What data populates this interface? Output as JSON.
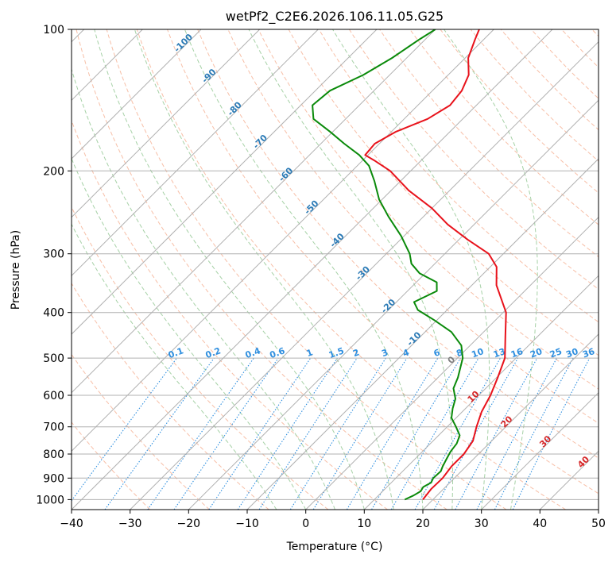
{
  "chart_data": {
    "type": "line",
    "title": "wetPf2_C2E6.2026.106.11.05.G25",
    "xlabel": "Temperature (°C)",
    "ylabel": "Pressure (hPa)",
    "xlim": [
      -40,
      50
    ],
    "ylim": [
      1050,
      100
    ],
    "x_ticks": [
      -40,
      -30,
      -20,
      -10,
      0,
      10,
      20,
      30,
      40,
      50
    ],
    "x_tick_labels": [
      "−40",
      "−30",
      "−20",
      "−10",
      "0",
      "10",
      "20",
      "30",
      "40",
      "50"
    ],
    "y_ticks": [
      1000,
      900,
      800,
      700,
      600,
      500,
      400,
      300,
      200,
      100
    ],
    "y_tick_labels": [
      "1000",
      "900",
      "800",
      "700",
      "600",
      "500",
      "400",
      "300",
      "200",
      "100"
    ],
    "colors": {
      "temperature": "#e8121b",
      "dewpoint": "#0a8a0a",
      "isotherm": "#8f8f8f",
      "dry_adiabat": "#f4a98a",
      "moist_adiabat": "#9ccc9c",
      "mixing_ratio": "#2f8fdf",
      "isotherm_label": "#2c7bb6",
      "mixing_label": "#2f8fdf",
      "warm_label": "#d62728",
      "zero_label": "#7f7f7f",
      "grid": "#b0b0b0"
    },
    "series": [
      {
        "name": "Temperature",
        "points": [
          [
            18.3,
            1000
          ],
          [
            17.9,
            950
          ],
          [
            18.0,
            900
          ],
          [
            17.5,
            850
          ],
          [
            17.5,
            800
          ],
          [
            16.8,
            750
          ],
          [
            15.0,
            700
          ],
          [
            13.3,
            650
          ],
          [
            12.0,
            600
          ],
          [
            10.2,
            550
          ],
          [
            8.1,
            500
          ],
          [
            4.5,
            450
          ],
          [
            0.5,
            400
          ],
          [
            -5.8,
            350
          ],
          [
            -8.9,
            320
          ],
          [
            -12.5,
            300
          ],
          [
            -18.5,
            280
          ],
          [
            -24.5,
            260
          ],
          [
            -30.0,
            240
          ],
          [
            -37.0,
            220
          ],
          [
            -43.5,
            200
          ],
          [
            -48.0,
            190
          ],
          [
            -50.5,
            185
          ],
          [
            -50.8,
            175
          ],
          [
            -49.2,
            165
          ],
          [
            -46.0,
            155
          ],
          [
            -44.5,
            145
          ],
          [
            -45.0,
            135
          ],
          [
            -46.5,
            125
          ],
          [
            -49.5,
            115
          ],
          [
            -51.5,
            105
          ],
          [
            -52.5,
            100
          ]
        ]
      },
      {
        "name": "Dewpoint",
        "points": [
          [
            15.2,
            1000
          ],
          [
            16.0,
            980
          ],
          [
            16.5,
            960
          ],
          [
            16.2,
            940
          ],
          [
            16.8,
            920
          ],
          [
            16.4,
            900
          ],
          [
            16.5,
            870
          ],
          [
            16.0,
            850
          ],
          [
            15.4,
            820
          ],
          [
            14.8,
            790
          ],
          [
            14.5,
            760
          ],
          [
            13.6,
            730
          ],
          [
            11.5,
            700
          ],
          [
            9.2,
            670
          ],
          [
            7.8,
            640
          ],
          [
            6.6,
            610
          ],
          [
            4.5,
            580
          ],
          [
            3.4,
            550
          ],
          [
            0.9,
            500
          ],
          [
            -1.5,
            470
          ],
          [
            -5.5,
            440
          ],
          [
            -10.5,
            415
          ],
          [
            -15.0,
            395
          ],
          [
            -17.0,
            380
          ],
          [
            -15.0,
            360
          ],
          [
            -16.5,
            345
          ],
          [
            -21.0,
            330
          ],
          [
            -24.0,
            315
          ],
          [
            -26.0,
            300
          ],
          [
            -30.5,
            275
          ],
          [
            -36.0,
            250
          ],
          [
            -40.5,
            230
          ],
          [
            -44.5,
            210
          ],
          [
            -48.0,
            195
          ],
          [
            -51.5,
            185
          ],
          [
            -56.0,
            175
          ],
          [
            -60.5,
            165
          ],
          [
            -65.5,
            155
          ],
          [
            -68.0,
            145
          ],
          [
            -67.5,
            135
          ],
          [
            -64.5,
            125
          ],
          [
            -62.5,
            115
          ],
          [
            -61.0,
            105
          ],
          [
            -60.0,
            100
          ]
        ]
      }
    ],
    "isotherm_labels": [
      "-100",
      "-90",
      "-80",
      "-70",
      "-60",
      "-50",
      "-40",
      "-30",
      "-20",
      "-10"
    ],
    "isotherm_label_values": [
      -100,
      -90,
      -80,
      -70,
      -60,
      -50,
      -40,
      -30,
      -20,
      -10
    ],
    "warm_isotherm_labels": [
      "0",
      "10",
      "20",
      "30",
      "40"
    ],
    "warm_isotherm_values": [
      0,
      10,
      20,
      30,
      40
    ],
    "warm_label_pressures": [
      510,
      610,
      690,
      760,
      840
    ],
    "mixing_ratio_labels": [
      "0.1",
      "0.2",
      "0.4",
      "0.6",
      "1",
      "1.5",
      "2",
      "3",
      "4",
      "6",
      "8",
      "10",
      "13",
      "16",
      "20",
      "25",
      "30",
      "36"
    ],
    "mixing_ratio_values": [
      0.1,
      0.2,
      0.4,
      0.6,
      1,
      1.5,
      2,
      3,
      4,
      6,
      8,
      10,
      13,
      16,
      20,
      25,
      30,
      36
    ]
  }
}
